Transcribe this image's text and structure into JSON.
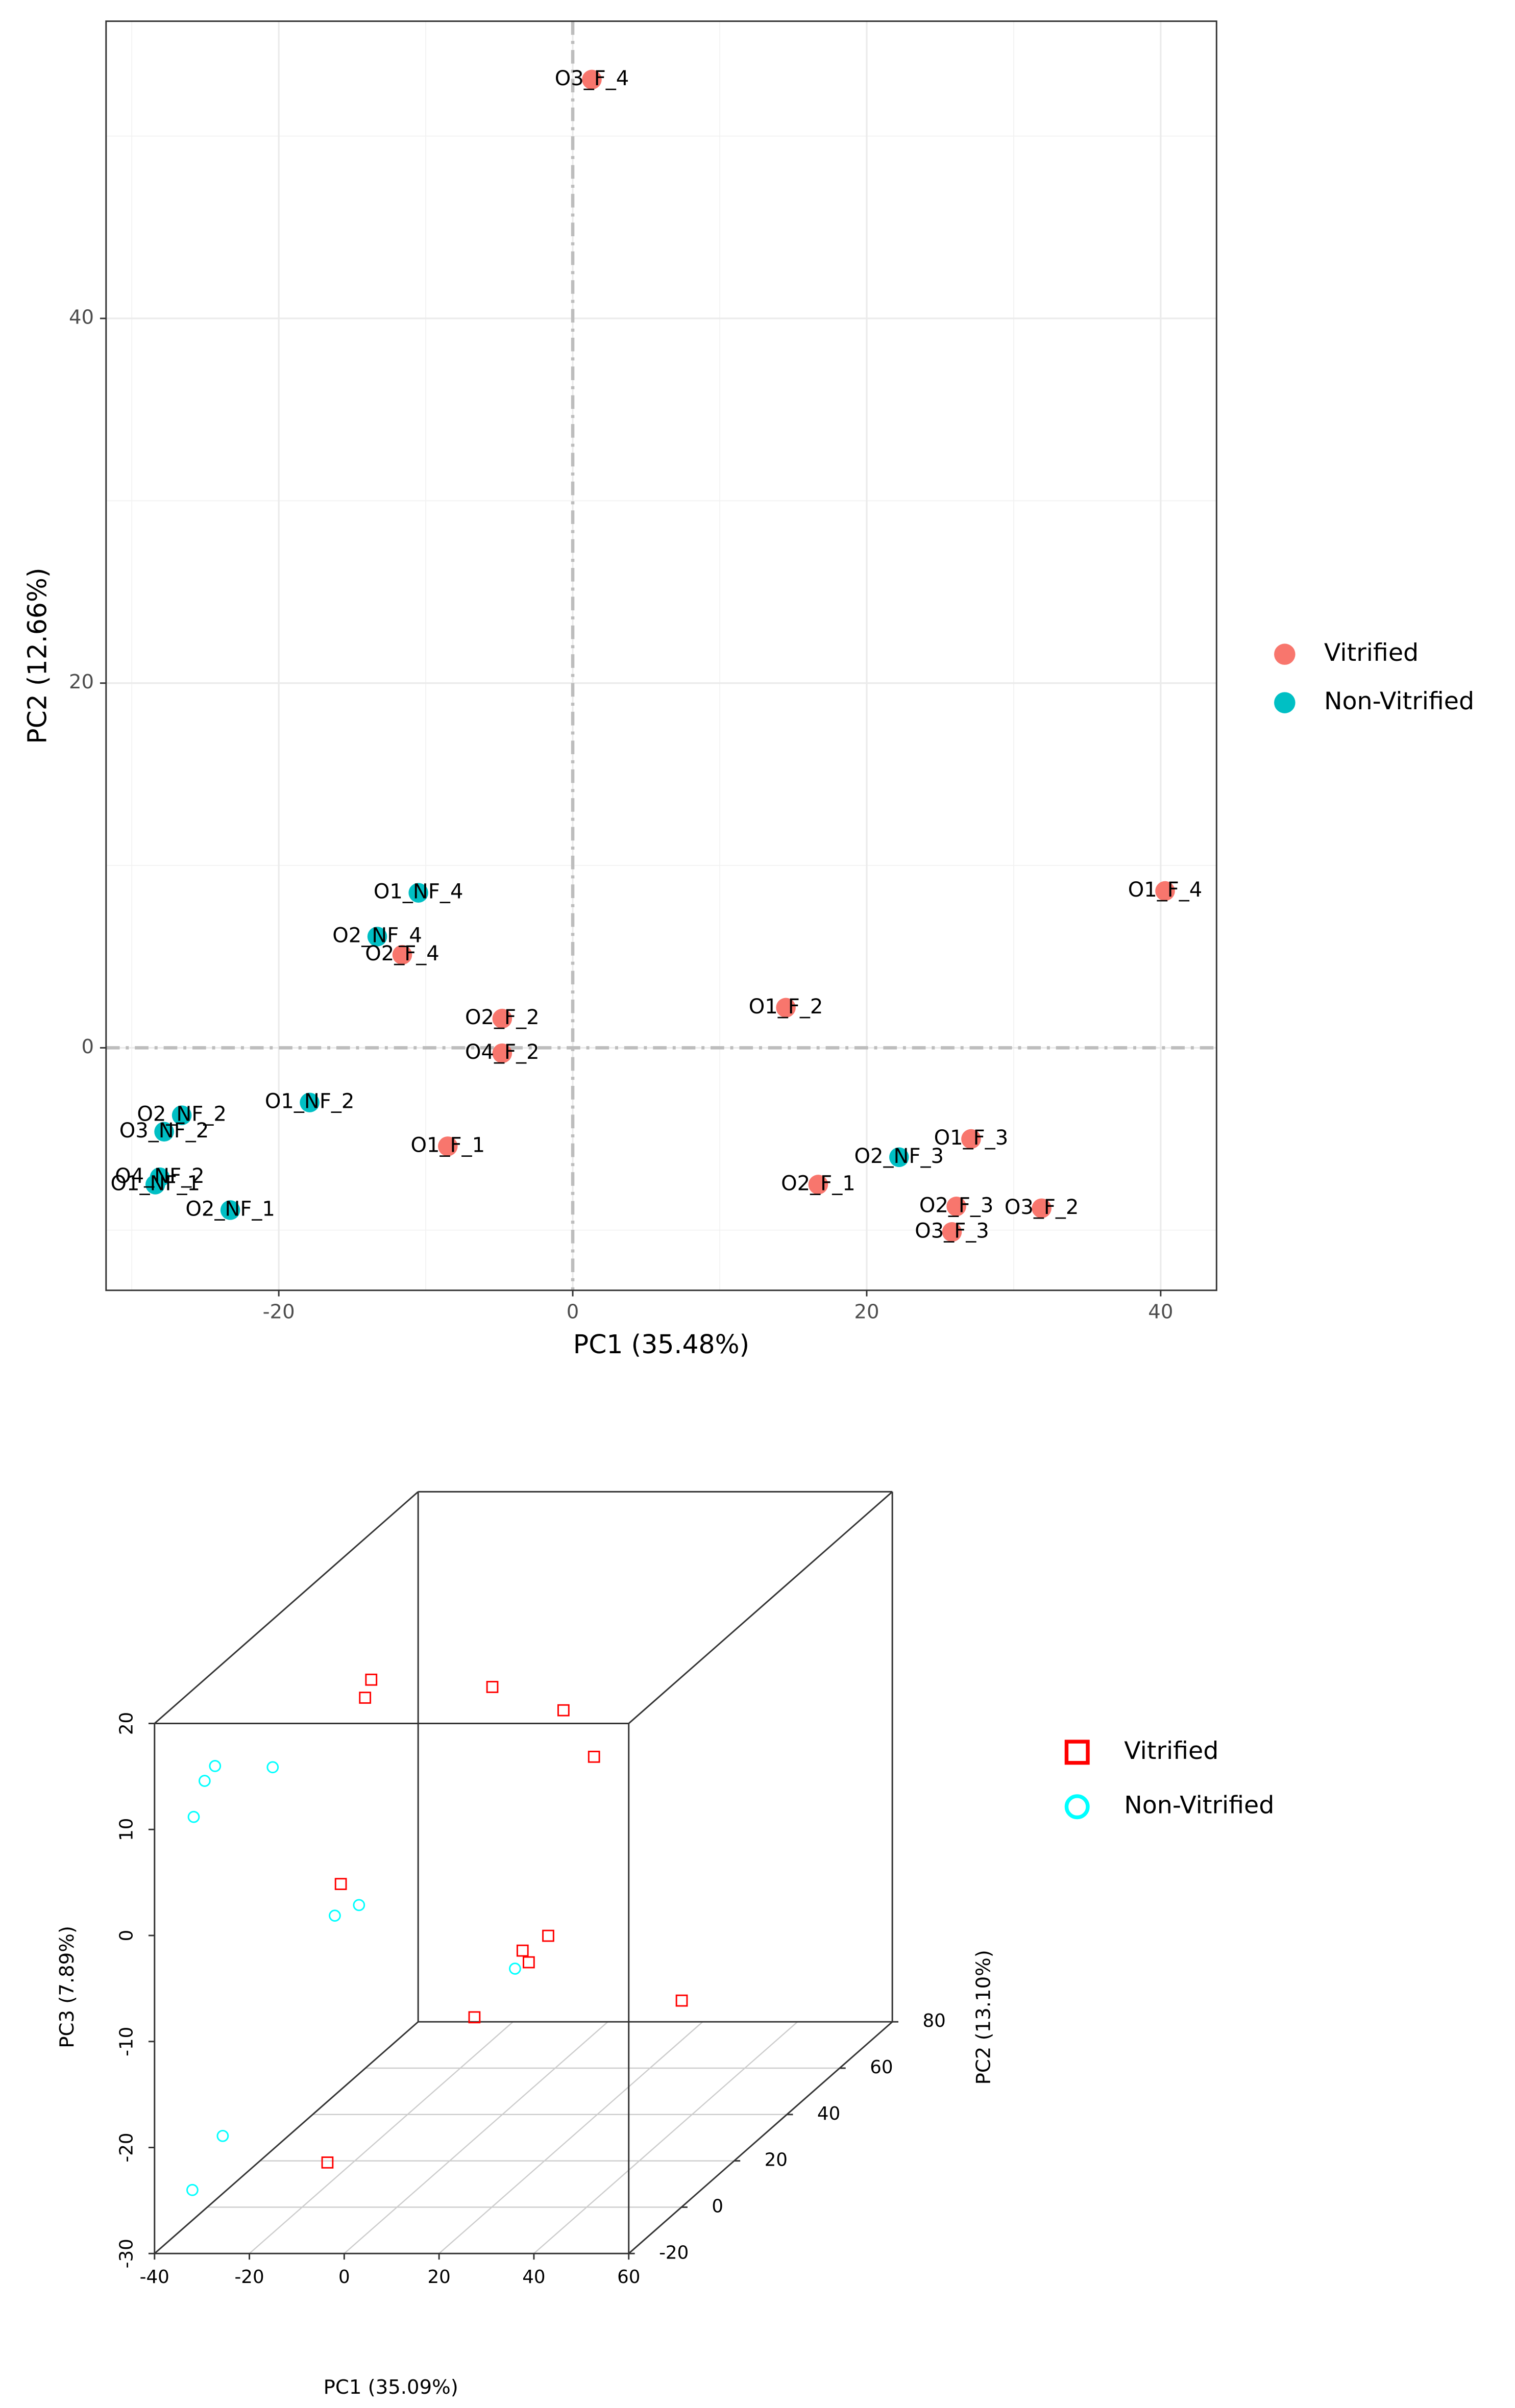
{
  "chart_data": [
    {
      "type": "scatter",
      "xlabel": "PC1 (35.48%)",
      "ylabel": "PC2 (12.66%)",
      "xlim": [
        -31.75,
        43.8
      ],
      "ylim": [
        -13.3,
        56.3
      ],
      "xticks": [
        -20,
        0,
        20,
        40
      ],
      "yticks": [
        0,
        20,
        40
      ],
      "grid": true,
      "reference_lines": {
        "x": 0,
        "y": 0
      },
      "legend": "right",
      "series": [
        {
          "name": "Vitrified",
          "color": "#F8766D",
          "labels": [
            "O3_F_4",
            "O1_F_4",
            "O2_F_4",
            "O2_F_2",
            "O4_F_2",
            "O1_F_2",
            "O1_F_1",
            "O1_F_3",
            "O2_F_1",
            "O2_F_3",
            "O3_F_2",
            "O3_F_3"
          ],
          "x": [
            1.3,
            40.3,
            -11.6,
            -4.8,
            -4.8,
            14.5,
            -8.5,
            27.1,
            16.7,
            26.1,
            31.9,
            25.8
          ],
          "values": [
            53.1,
            8.6,
            5.1,
            1.6,
            -0.3,
            2.2,
            -5.4,
            -5.0,
            -7.5,
            -8.7,
            -8.8,
            -10.1
          ]
        },
        {
          "name": "Non-Vitrified",
          "color": "#00BFC4",
          "labels": [
            "O1_NF_4",
            "O2_NF_4",
            "O1_NF_2",
            "O2_NF_2",
            "O3_NF_2",
            "O4_NF_2",
            "O1_NF_1",
            "O2_NF_1",
            "O2_NF_3"
          ],
          "x": [
            -10.5,
            -13.3,
            -17.9,
            -26.6,
            -27.8,
            -28.1,
            -28.4,
            -23.3,
            22.2
          ],
          "values": [
            8.5,
            6.1,
            -3.0,
            -3.7,
            -4.6,
            -7.1,
            -7.5,
            -8.9,
            -6.0
          ]
        }
      ]
    },
    {
      "type": "scatter3d",
      "xlabel": "PC1 (35.09%)",
      "ylabel": "PC2 (13.10%)",
      "zlabel": "PC3 (7.89%)",
      "xlim": [
        -40,
        60
      ],
      "ylim": [
        -20,
        80
      ],
      "zlim": [
        -30,
        20
      ],
      "xticks": [
        -40,
        -20,
        0,
        20,
        40,
        60
      ],
      "yticks": [
        -20,
        0,
        20,
        40,
        60,
        80
      ],
      "zticks": [
        -30,
        -20,
        -10,
        0,
        10,
        20
      ],
      "grid": true,
      "legend": "right",
      "series": [
        {
          "name": "Vitrified",
          "color": "#FF0000",
          "marker": "square",
          "x": [
            -22.1,
            -23.4,
            9.0,
            24.0,
            36.0,
            -17.4,
            31.9,
            26.5,
            27.8,
            54.5,
            21.9,
            -9.1
          ],
          "y": [
            30,
            30,
            20,
            20,
            10,
            10,
            0,
            0,
            0,
            10,
            -10,
            -10
          ],
          "z": [
            13.2,
            11.5,
            14.7,
            12.5,
            10.3,
            -1.7,
            -4.4,
            -5.8,
            -6.9,
            -12.7,
            -9.9,
            -23.6
          ]
        },
        {
          "name": "Non-Vitrified",
          "color": "#00FFFF",
          "marker": "circle",
          "x": [
            -32.8,
            -35.0,
            -37.3,
            -26.2,
            -8.0,
            -13.1,
            24.9,
            -28.4,
            -34.8
          ],
          "y": [
            -10,
            -10,
            -10,
            0,
            0,
            0,
            0,
            -15,
            -15
          ],
          "z": [
            13.8,
            12.4,
            9.0,
            11.5,
            -1.5,
            -2.5,
            -7.5,
            -20.0,
            -25.1
          ]
        }
      ]
    }
  ]
}
